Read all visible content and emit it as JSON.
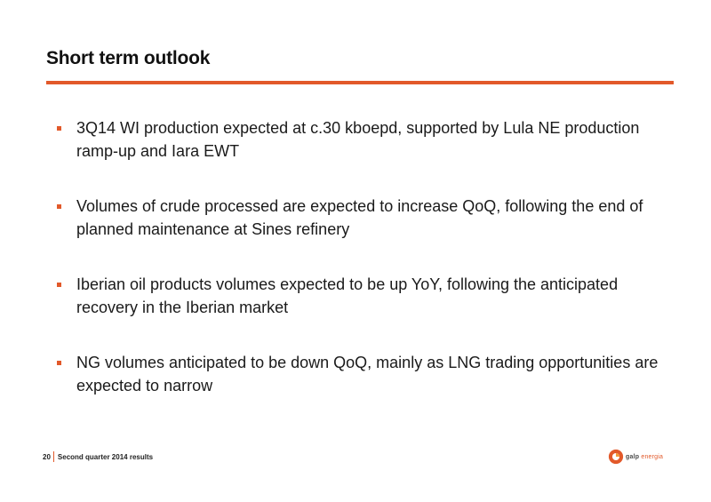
{
  "slide": {
    "title": "Short term outlook",
    "accent_color": "#e2592a",
    "bullets": [
      "3Q14 WI production expected at c.30 kboepd, supported by Lula NE production ramp-up and Iara EWT",
      "Volumes of crude processed are expected to increase QoQ, following the end of planned maintenance at Sines refinery",
      "Iberian oil products volumes expected to be up YoY, following the anticipated recovery in the Iberian market",
      "NG volumes anticipated to be down QoQ, mainly as LNG trading opportunities are expected to narrow"
    ]
  },
  "footer": {
    "page_number": "20",
    "text": "Second quarter 2014 results"
  },
  "logo": {
    "brand": "galp",
    "sub": "energia",
    "icon": "galp-logo-icon"
  }
}
